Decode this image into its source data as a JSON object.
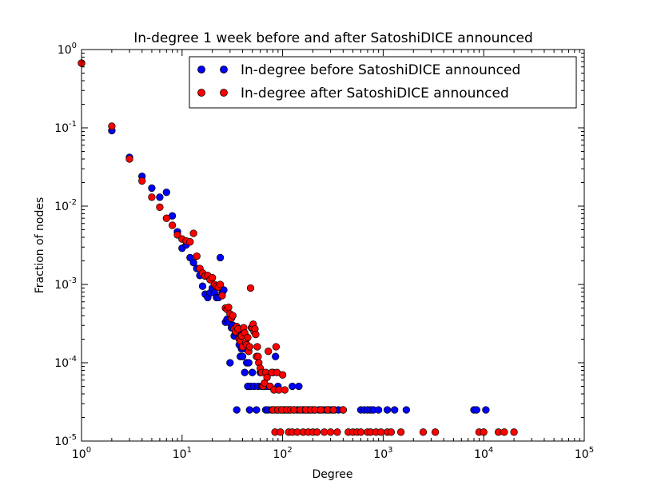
{
  "chart_data": {
    "type": "scatter",
    "title": "In-degree 1 week before and after SatoshiDICE announced",
    "xlabel": "Degree",
    "ylabel": "Fraction of nodes",
    "xscale": "log",
    "yscale": "log",
    "xlim": [
      1,
      100000
    ],
    "ylim": [
      1e-05,
      1
    ],
    "grid": false,
    "legend_position": "top-right",
    "x_ticks": [
      {
        "value": 1,
        "base": "10",
        "exp": "0"
      },
      {
        "value": 10,
        "base": "10",
        "exp": "1"
      },
      {
        "value": 100,
        "base": "10",
        "exp": "2"
      },
      {
        "value": 1000,
        "base": "10",
        "exp": "3"
      },
      {
        "value": 10000,
        "base": "10",
        "exp": "4"
      },
      {
        "value": 100000,
        "base": "10",
        "exp": "5"
      }
    ],
    "y_ticks": [
      {
        "value": 1e-05,
        "base": "10",
        "exp": "-5"
      },
      {
        "value": 0.0001,
        "base": "10",
        "exp": "-4"
      },
      {
        "value": 0.001,
        "base": "10",
        "exp": "-3"
      },
      {
        "value": 0.01,
        "base": "10",
        "exp": "-2"
      },
      {
        "value": 0.1,
        "base": "10",
        "exp": "-1"
      },
      {
        "value": 1,
        "base": "10",
        "exp": "0"
      }
    ],
    "series": [
      {
        "name": "In-degree before SatoshiDICE announced",
        "color": "#0000ff",
        "points": [
          [
            1,
            0.67
          ],
          [
            2,
            0.092
          ],
          [
            3,
            0.042
          ],
          [
            4,
            0.024
          ],
          [
            5,
            0.017
          ],
          [
            6,
            0.013
          ],
          [
            7,
            0.015
          ],
          [
            8,
            0.0075
          ],
          [
            9,
            0.0047
          ],
          [
            10,
            0.0029
          ],
          [
            11,
            0.0032
          ],
          [
            12,
            0.0022
          ],
          [
            13,
            0.0019
          ],
          [
            14,
            0.0016
          ],
          [
            15,
            0.0013
          ],
          [
            16,
            0.00095
          ],
          [
            17,
            0.00075
          ],
          [
            18,
            0.00068
          ],
          [
            19,
            0.00078
          ],
          [
            20,
            0.0009
          ],
          [
            21,
            0.00078
          ],
          [
            22,
            0.00068
          ],
          [
            23,
            0.00068
          ],
          [
            24,
            0.0022
          ],
          [
            25,
            0.00078
          ],
          [
            26,
            0.00085
          ],
          [
            27,
            0.00033
          ],
          [
            28,
            0.00036
          ],
          [
            29,
            0.00033
          ],
          [
            30,
            0.0001
          ],
          [
            31,
            0.00028
          ],
          [
            32,
            0.0003
          ],
          [
            33,
            0.00022
          ],
          [
            34,
            0.00024
          ],
          [
            35,
            2.5e-05
          ],
          [
            36,
            0.00025
          ],
          [
            37,
            0.00017
          ],
          [
            38,
            0.00012
          ],
          [
            39,
            0.00015
          ],
          [
            40,
            0.00012
          ],
          [
            42,
            7.5e-05
          ],
          [
            43,
            0.00015
          ],
          [
            44,
            0.0001
          ],
          [
            45,
            5e-05
          ],
          [
            46,
            0.0001
          ],
          [
            47,
            2.5e-05
          ],
          [
            48,
            5e-05
          ],
          [
            50,
            7.5e-05
          ],
          [
            52,
            5e-05
          ],
          [
            55,
            2.5e-05
          ],
          [
            57,
            5e-05
          ],
          [
            60,
            7.5e-05
          ],
          [
            62,
            5e-05
          ],
          [
            65,
            5e-05
          ],
          [
            68,
            2.5e-05
          ],
          [
            70,
            5e-05
          ],
          [
            72,
            2.5e-05
          ],
          [
            75,
            5e-05
          ],
          [
            78,
            2.5e-05
          ],
          [
            80,
            7.5e-05
          ],
          [
            82,
            2.5e-05
          ],
          [
            85,
            0.00012
          ],
          [
            88,
            2.5e-05
          ],
          [
            90,
            5e-05
          ],
          [
            95,
            2.5e-05
          ],
          [
            100,
            2.5e-05
          ],
          [
            105,
            2.5e-05
          ],
          [
            110,
            2.5e-05
          ],
          [
            115,
            2.5e-05
          ],
          [
            120,
            2.5e-05
          ],
          [
            125,
            5e-05
          ],
          [
            130,
            2.5e-05
          ],
          [
            140,
            2.5e-05
          ],
          [
            145,
            5e-05
          ],
          [
            150,
            2.5e-05
          ],
          [
            160,
            2.5e-05
          ],
          [
            170,
            2.5e-05
          ],
          [
            180,
            2.5e-05
          ],
          [
            190,
            2.5e-05
          ],
          [
            200,
            2.5e-05
          ],
          [
            210,
            2.5e-05
          ],
          [
            230,
            2.5e-05
          ],
          [
            250,
            2.5e-05
          ],
          [
            270,
            2.5e-05
          ],
          [
            290,
            2.5e-05
          ],
          [
            310,
            2.5e-05
          ],
          [
            330,
            2.5e-05
          ],
          [
            360,
            2.5e-05
          ],
          [
            400,
            2.5e-05
          ],
          [
            600,
            2.5e-05
          ],
          [
            650,
            2.5e-05
          ],
          [
            700,
            2.5e-05
          ],
          [
            750,
            2.5e-05
          ],
          [
            800,
            2.5e-05
          ],
          [
            900,
            2.5e-05
          ],
          [
            1100,
            2.5e-05
          ],
          [
            1300,
            2.5e-05
          ],
          [
            1700,
            2.5e-05
          ],
          [
            8000,
            2.5e-05
          ],
          [
            8500,
            2.5e-05
          ],
          [
            10500,
            2.5e-05
          ]
        ]
      },
      {
        "name": "In-degree after SatoshiDICE announced",
        "color": "#ff0000",
        "points": [
          [
            1,
            0.67
          ],
          [
            2,
            0.105
          ],
          [
            3,
            0.04
          ],
          [
            4,
            0.021
          ],
          [
            5,
            0.013
          ],
          [
            6,
            0.0097
          ],
          [
            7,
            0.007
          ],
          [
            8,
            0.0057
          ],
          [
            9,
            0.0043
          ],
          [
            10,
            0.0038
          ],
          [
            11,
            0.0036
          ],
          [
            12,
            0.0035
          ],
          [
            13,
            0.0045
          ],
          [
            14,
            0.0023
          ],
          [
            15,
            0.0016
          ],
          [
            16,
            0.0014
          ],
          [
            17,
            0.00128
          ],
          [
            18,
            0.0013
          ],
          [
            19,
            0.00115
          ],
          [
            20,
            0.00122
          ],
          [
            21,
            0.001
          ],
          [
            22,
            0.00095
          ],
          [
            23,
            0.00092
          ],
          [
            24,
            0.001
          ],
          [
            25,
            0.00072
          ],
          [
            27,
            0.0005
          ],
          [
            28,
            0.00048
          ],
          [
            29,
            0.00051
          ],
          [
            30,
            0.00042
          ],
          [
            31,
            0.00037
          ],
          [
            32,
            0.0004
          ],
          [
            33,
            0.00027
          ],
          [
            34,
            0.00025
          ],
          [
            35,
            0.00029
          ],
          [
            36,
            0.00027
          ],
          [
            37,
            0.0002
          ],
          [
            38,
            0.00019
          ],
          [
            39,
            0.00022
          ],
          [
            40,
            0.00016
          ],
          [
            41,
            0.00028
          ],
          [
            42,
            0.00024
          ],
          [
            43,
            0.00018
          ],
          [
            44,
            0.00017
          ],
          [
            45,
            0.00021
          ],
          [
            46,
            0.00014
          ],
          [
            47,
            0.00016
          ],
          [
            48,
            0.0009
          ],
          [
            49,
            0.00028
          ],
          [
            50,
            0.00028
          ],
          [
            51,
            0.00031
          ],
          [
            52,
            0.00025
          ],
          [
            53,
            0.00027
          ],
          [
            54,
            0.00023
          ],
          [
            55,
            0.00012
          ],
          [
            56,
            0.00016
          ],
          [
            57,
            0.00012
          ],
          [
            58,
            0.0001
          ],
          [
            60,
            8.5e-05
          ],
          [
            62,
            7.5e-05
          ],
          [
            64,
            5e-05
          ],
          [
            66,
            5.5e-05
          ],
          [
            68,
            7.5e-05
          ],
          [
            70,
            6.5e-05
          ],
          [
            72,
            0.00014
          ],
          [
            75,
            5e-05
          ],
          [
            78,
            7.5e-05
          ],
          [
            80,
            2.5e-05
          ],
          [
            82,
            4.5e-05
          ],
          [
            84,
            1.3e-05
          ],
          [
            86,
            0.00016
          ],
          [
            88,
            7.5e-05
          ],
          [
            90,
            2.5e-05
          ],
          [
            92,
            4.5e-05
          ],
          [
            95,
            1.3e-05
          ],
          [
            98,
            2.5e-05
          ],
          [
            100,
            7e-05
          ],
          [
            105,
            4.5e-05
          ],
          [
            110,
            2.5e-05
          ],
          [
            115,
            1.3e-05
          ],
          [
            120,
            2.5e-05
          ],
          [
            125,
            1.3e-05
          ],
          [
            130,
            2.5e-05
          ],
          [
            140,
            1.3e-05
          ],
          [
            150,
            2.5e-05
          ],
          [
            160,
            1.3e-05
          ],
          [
            170,
            2.5e-05
          ],
          [
            180,
            1.3e-05
          ],
          [
            190,
            2.5e-05
          ],
          [
            200,
            1.3e-05
          ],
          [
            210,
            2.5e-05
          ],
          [
            220,
            1.3e-05
          ],
          [
            240,
            2.5e-05
          ],
          [
            260,
            1.3e-05
          ],
          [
            280,
            2.5e-05
          ],
          [
            300,
            1.3e-05
          ],
          [
            320,
            2.5e-05
          ],
          [
            350,
            1.3e-05
          ],
          [
            400,
            2.5e-05
          ],
          [
            450,
            1.3e-05
          ],
          [
            500,
            1.3e-05
          ],
          [
            550,
            1.3e-05
          ],
          [
            600,
            1.3e-05
          ],
          [
            700,
            1.3e-05
          ],
          [
            750,
            1.3e-05
          ],
          [
            850,
            1.3e-05
          ],
          [
            950,
            1.3e-05
          ],
          [
            1100,
            1.3e-05
          ],
          [
            1200,
            1.3e-05
          ],
          [
            1500,
            1.3e-05
          ],
          [
            2500,
            1.3e-05
          ],
          [
            3300,
            1.3e-05
          ],
          [
            9000,
            1.3e-05
          ],
          [
            10000,
            1.3e-05
          ],
          [
            14000,
            1.3e-05
          ],
          [
            16000,
            1.3e-05
          ],
          [
            20000,
            1.3e-05
          ]
        ]
      }
    ]
  }
}
